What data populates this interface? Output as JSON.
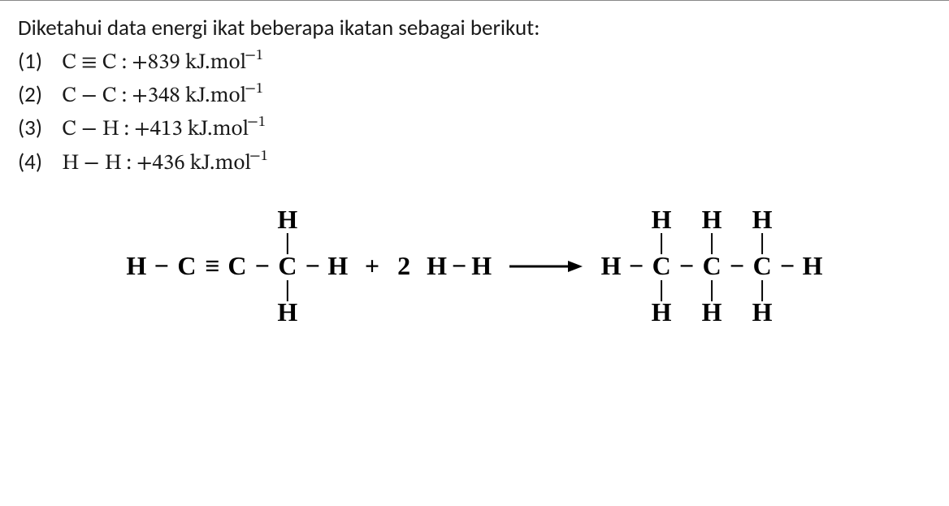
{
  "intro": "Diketahui data energi ikat beberapa ikatan sebagai berikut:",
  "bonds": [
    {
      "num": "(1)",
      "a": "C",
      "sym": "≡",
      "b": "C",
      "val": "+839",
      "unit_base": "kJ.mol",
      "unit_sup": "−1"
    },
    {
      "num": "(2)",
      "a": "C",
      "sym": "−",
      "b": "C",
      "val": "+348",
      "unit_base": "kJ.mol",
      "unit_sup": "−1"
    },
    {
      "num": "(3)",
      "a": "C",
      "sym": "−",
      "b": "H",
      "val": "+413",
      "unit_base": "kJ.mol",
      "unit_sup": "−1"
    },
    {
      "num": "(4)",
      "a": "H",
      "sym": "−",
      "b": "H",
      "val": "+436",
      "unit_base": "kJ.mol",
      "unit_sup": "−1"
    }
  ],
  "reaction": {
    "atoms": {
      "H": "H",
      "C": "C"
    },
    "glyphs": {
      "vbond": "|",
      "single": "−",
      "triple": "≡",
      "plus": "+",
      "factor": "2"
    },
    "arrow": {
      "width": 90,
      "height": 18,
      "stroke": "#000000",
      "stroke_width": 3
    },
    "colors": {
      "text": "#000000"
    },
    "font": {
      "family": "Times New Roman",
      "size_pt": 24,
      "weight": "bold"
    },
    "reactant": {
      "cols": [
        {
          "top": "",
          "tb": "",
          "mid": "H",
          "bb": "",
          "bot": ""
        },
        {
          "hbond": "−"
        },
        {
          "top": "",
          "tb": "",
          "mid": "C",
          "bb": "",
          "bot": ""
        },
        {
          "hbond": "≡"
        },
        {
          "top": "",
          "tb": "",
          "mid": "C",
          "bb": "",
          "bot": ""
        },
        {
          "hbond": "−"
        },
        {
          "top": "H",
          "tb": "|",
          "mid": "C",
          "bb": "|",
          "bot": "H"
        },
        {
          "hbond": "−"
        },
        {
          "top": "",
          "tb": "",
          "mid": "H",
          "bb": "",
          "bot": ""
        }
      ]
    },
    "product": {
      "cols": [
        {
          "top": "",
          "tb": "",
          "mid": "H",
          "bb": "",
          "bot": ""
        },
        {
          "hbond": "−"
        },
        {
          "top": "H",
          "tb": "|",
          "mid": "C",
          "bb": "|",
          "bot": "H"
        },
        {
          "hbond": "−"
        },
        {
          "top": "H",
          "tb": "|",
          "mid": "C",
          "bb": "|",
          "bot": "H"
        },
        {
          "hbond": "−"
        },
        {
          "top": "H",
          "tb": "|",
          "mid": "C",
          "bb": "|",
          "bot": "H"
        },
        {
          "hbond": "−"
        },
        {
          "top": "",
          "tb": "",
          "mid": "H",
          "bb": "",
          "bot": ""
        }
      ]
    }
  }
}
